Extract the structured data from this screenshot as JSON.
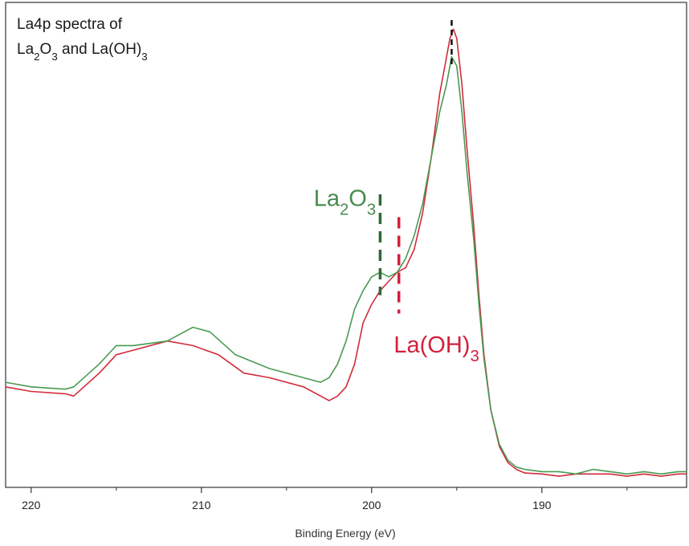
{
  "chart_data": {
    "type": "line",
    "title_line1": "La4p spectra of",
    "title_line2_parts": [
      "La",
      "2",
      "O",
      "3",
      " and La(OH)",
      "3"
    ],
    "xlabel": "Binding Energy (eV)",
    "ylabel": "",
    "x_reversed": true,
    "xlim": [
      221.5,
      181.5
    ],
    "ylim": [
      0,
      1
    ],
    "grid": false,
    "xticks": [
      220,
      210,
      200,
      190
    ],
    "minor_xticks": [
      215,
      205,
      195,
      185
    ],
    "series": [
      {
        "color": "#d22b3a",
        "x": [
          221.5,
          220,
          218,
          217.5,
          216,
          215,
          214,
          212,
          210.5,
          209,
          207.5,
          206,
          204,
          203,
          202.5,
          202,
          201.5,
          201,
          200.5,
          200,
          199.5,
          199,
          198.5,
          198,
          197.5,
          197,
          196.5,
          196,
          195.7,
          195.4,
          195.2,
          195,
          194.7,
          194.4,
          194,
          193.7,
          193.4,
          193,
          192.5,
          192,
          191.5,
          191,
          190,
          189,
          188,
          187,
          186,
          185,
          184,
          183,
          182,
          181.5
        ],
        "y": [
          0.2,
          0.19,
          0.185,
          0.18,
          0.23,
          0.27,
          0.28,
          0.3,
          0.29,
          0.27,
          0.23,
          0.22,
          0.2,
          0.18,
          0.17,
          0.18,
          0.2,
          0.25,
          0.34,
          0.38,
          0.41,
          0.43,
          0.45,
          0.46,
          0.5,
          0.58,
          0.7,
          0.84,
          0.9,
          0.96,
          0.98,
          0.96,
          0.86,
          0.72,
          0.55,
          0.4,
          0.27,
          0.15,
          0.07,
          0.035,
          0.02,
          0.012,
          0.01,
          0.005,
          0.01,
          0.01,
          0.01,
          0.005,
          0.01,
          0.005,
          0.01,
          0.01
        ]
      },
      {
        "color": "#4a9a52",
        "x": [
          221.5,
          220,
          218,
          217.5,
          216,
          215,
          214,
          212,
          210.5,
          209.5,
          208,
          206,
          204,
          203,
          202.5,
          202,
          201.5,
          201,
          200.5,
          200,
          199.5,
          199,
          198.5,
          198,
          197.5,
          197,
          196.5,
          196,
          195.6,
          195.3,
          195,
          194.7,
          194.4,
          194,
          193.7,
          193.4,
          193,
          192.5,
          192,
          191.5,
          191,
          190,
          189,
          188,
          187,
          186,
          185,
          184,
          183,
          182,
          181.5
        ],
        "y": [
          0.21,
          0.2,
          0.195,
          0.2,
          0.25,
          0.29,
          0.29,
          0.3,
          0.33,
          0.32,
          0.27,
          0.24,
          0.22,
          0.21,
          0.22,
          0.25,
          0.3,
          0.37,
          0.41,
          0.44,
          0.45,
          0.44,
          0.45,
          0.48,
          0.53,
          0.6,
          0.7,
          0.8,
          0.86,
          0.92,
          0.9,
          0.8,
          0.67,
          0.52,
          0.38,
          0.26,
          0.15,
          0.075,
          0.04,
          0.025,
          0.02,
          0.015,
          0.015,
          0.01,
          0.02,
          0.015,
          0.01,
          0.015,
          0.01,
          0.015,
          0.015
        ]
      }
    ],
    "markers": [
      {
        "x": 195.3,
        "y1": 0.9,
        "y2": 1.0,
        "color": "#111111"
      },
      {
        "x": 199.5,
        "y1": 0.4,
        "y2": 0.62,
        "color": "#2e6a35"
      },
      {
        "x": 198.4,
        "y1": 0.36,
        "y2": 0.57,
        "color": "#d21f3b"
      }
    ],
    "annotations": [
      {
        "parts": [
          "La",
          "2",
          "O",
          "3"
        ],
        "x": 203.4,
        "y": 0.595,
        "color": "#4a8a4e"
      },
      {
        "parts": [
          "La(OH)",
          "3"
        ],
        "x": 198.7,
        "y": 0.275,
        "color": "#d21f3b"
      }
    ]
  }
}
